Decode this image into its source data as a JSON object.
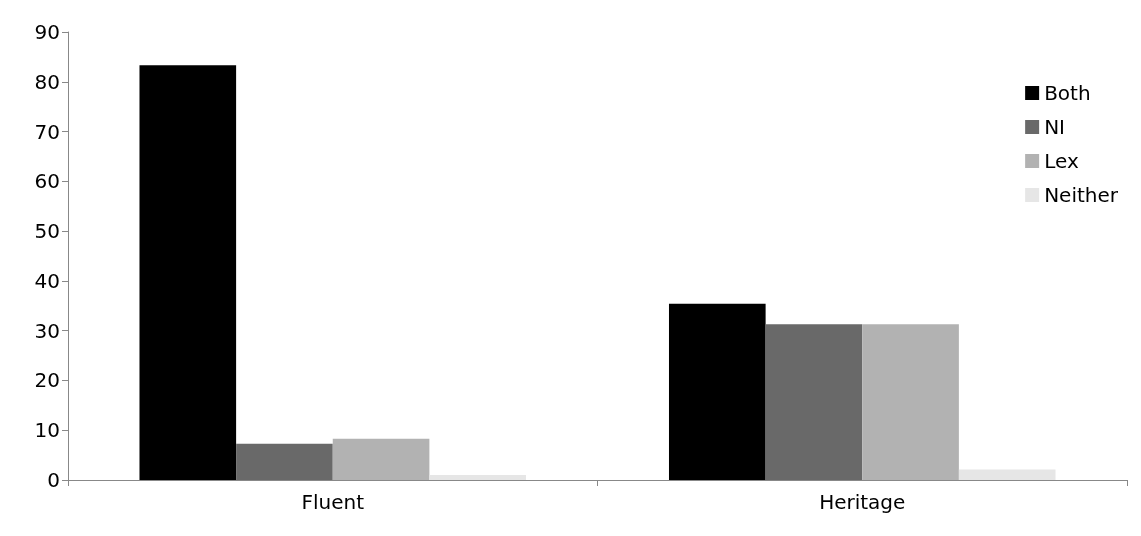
{
  "chart_data": {
    "type": "bar",
    "categories": [
      "Fluent",
      "Heritage"
    ],
    "series": [
      {
        "name": "Both",
        "color": "#000000",
        "values": [
          83.3,
          35.4
        ]
      },
      {
        "name": "NI",
        "color": "#696969",
        "values": [
          7.3,
          31.3
        ]
      },
      {
        "name": "Lex",
        "color": "#b2b2b2",
        "values": [
          8.3,
          31.3
        ]
      },
      {
        "name": "Neither",
        "color": "#e6e6e6",
        "values": [
          1.0,
          2.1
        ]
      }
    ],
    "ylim": [
      0,
      90
    ],
    "yticks": [
      0,
      10,
      20,
      30,
      40,
      50,
      60,
      70,
      80,
      90
    ],
    "grid": false,
    "legend": "top right"
  }
}
